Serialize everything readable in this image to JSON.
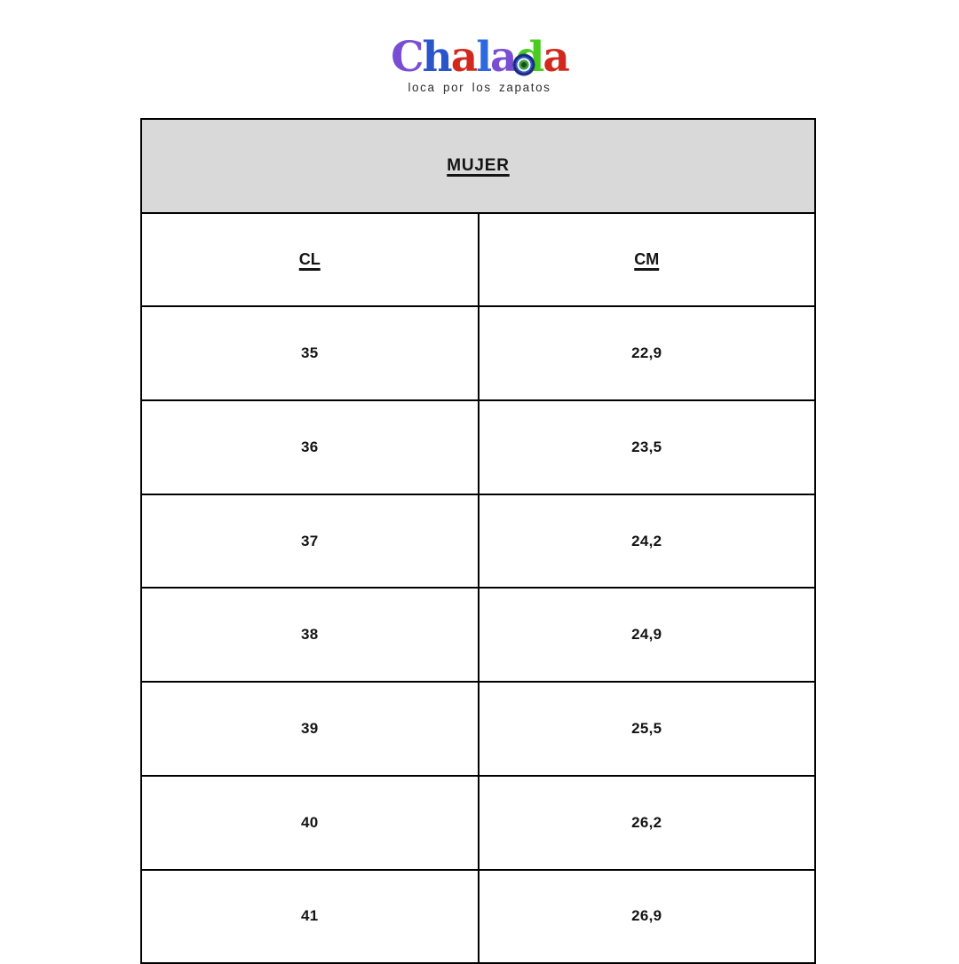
{
  "logo": {
    "brand": "Chalada",
    "letters": [
      {
        "char": "C",
        "color": "#7a4ed2"
      },
      {
        "char": "h",
        "color": "#2a55cb"
      },
      {
        "char": "a",
        "color": "#d2291e"
      },
      {
        "char": "l",
        "color": "#2e68e0"
      },
      {
        "char": "a",
        "color": "#7a4ed2"
      },
      {
        "char": "d",
        "color": "#49cc1f",
        "decor": "flower"
      },
      {
        "char": "a",
        "color": "#d2291e"
      }
    ],
    "tagline": "loca por los zapatos"
  },
  "chart_data": {
    "type": "table",
    "title": "MUJER",
    "columns": [
      "CL",
      "CM"
    ],
    "rows": [
      [
        "35",
        "22,9"
      ],
      [
        "36",
        "23,5"
      ],
      [
        "37",
        "24,2"
      ],
      [
        "38",
        "24,9"
      ],
      [
        "39",
        "25,5"
      ],
      [
        "40",
        "26,2"
      ],
      [
        "41",
        "26,9"
      ]
    ]
  },
  "colors": {
    "header_bg": "#d9d9d9",
    "border": "#000000",
    "text": "#141414",
    "tagline_text": "#2e2e2e"
  }
}
